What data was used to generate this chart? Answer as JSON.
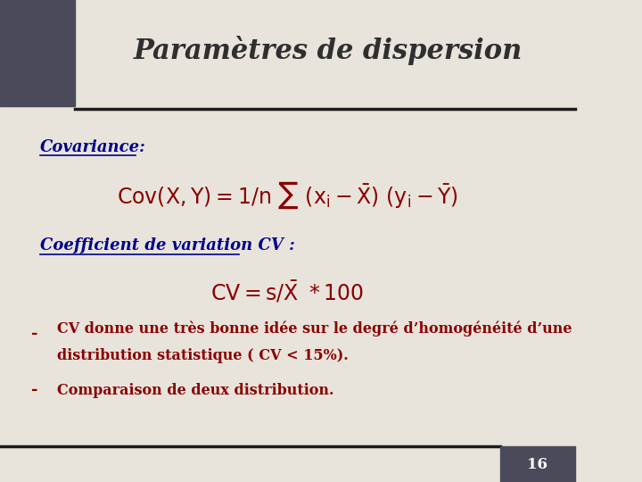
{
  "title": "Paramètres de dispersion",
  "title_color": "#2F2F2F",
  "title_fontsize": 22,
  "bg_color": "#E8E4DC",
  "header_bar_color": "#4A4A5A",
  "separator_color": "#1A1A1A",
  "covariance_label": "Covariance:",
  "covariance_label_color": "#00008B",
  "covariance_formula_color": "#8B0000",
  "cv_label": "Coefficient de variation CV :",
  "cv_label_color": "#00008B",
  "cv_formula_color": "#8B0000",
  "bullet1_line1": "CV donne une très bonne idée sur le degré d’homogénéité d’une",
  "bullet1_line2": "distribution statistique ( CV < 15%).",
  "bullet1_color": "#8B0000",
  "bullet2_text": "Comparaison de deux distribution.",
  "bullet2_color": "#8B0000",
  "page_number": "16",
  "page_number_color": "#FFFFFF",
  "footer_color": "#4A4A5A"
}
